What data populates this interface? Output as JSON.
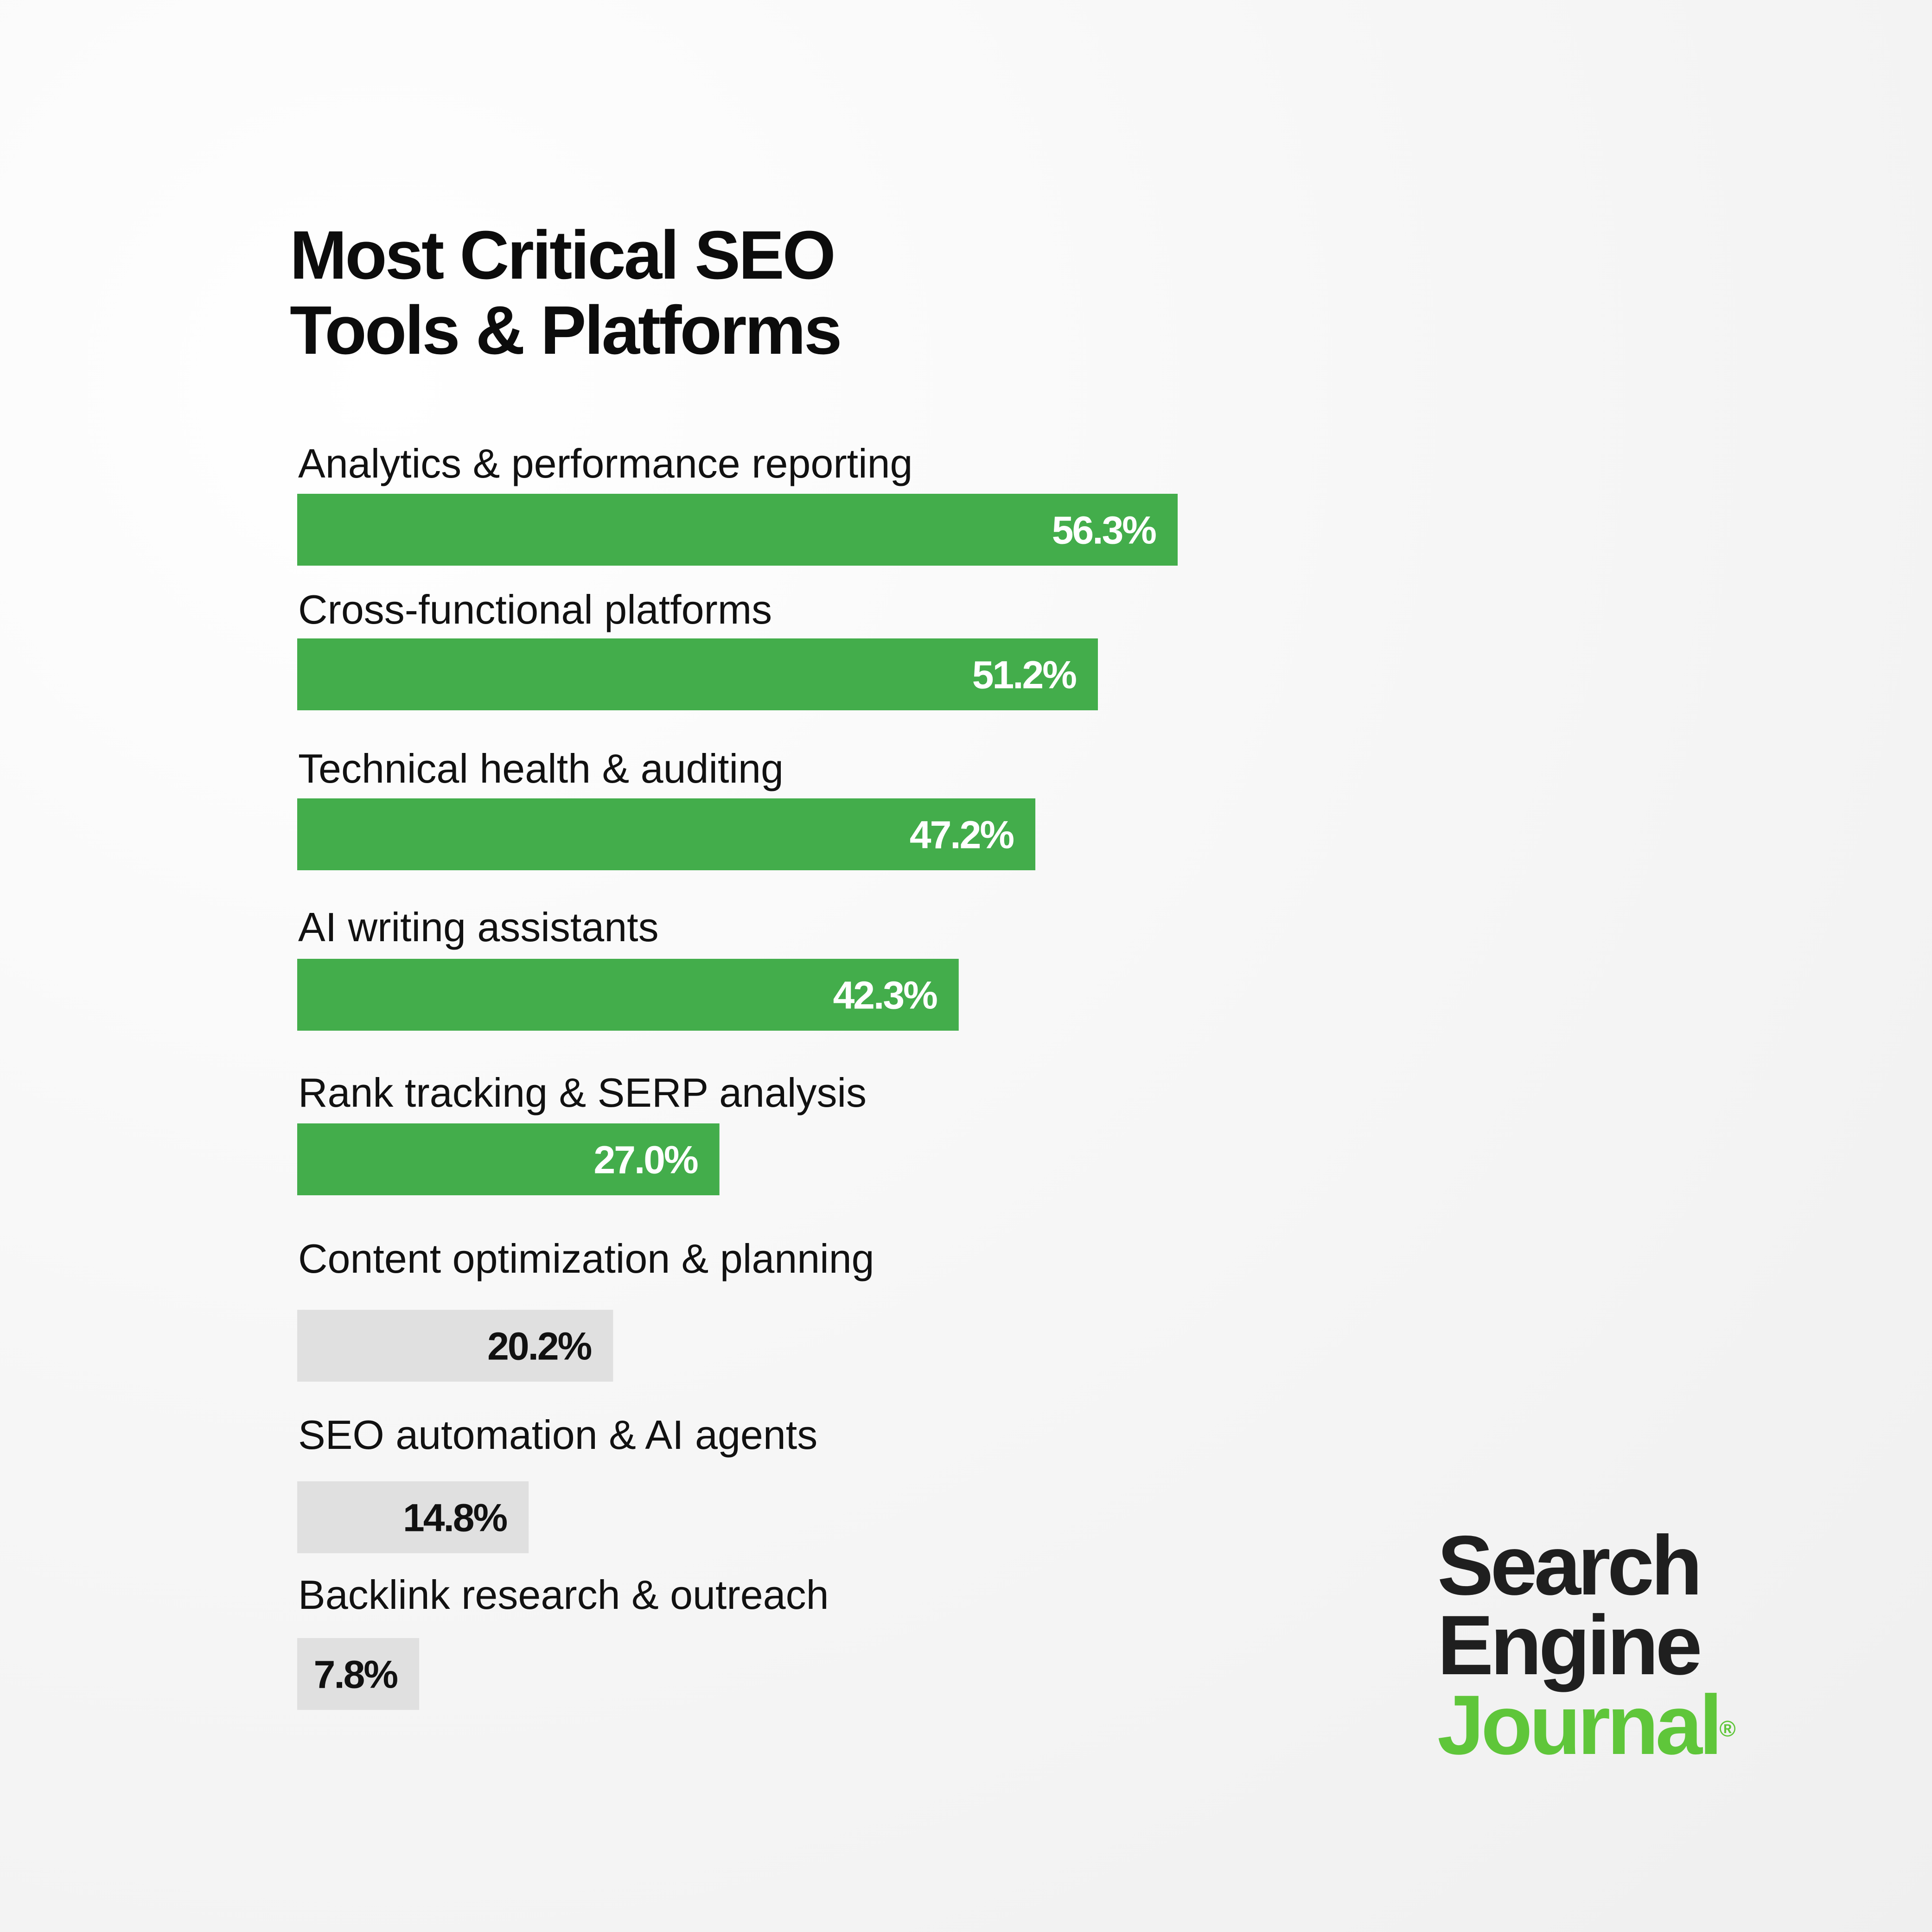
{
  "chart_data": {
    "type": "bar",
    "orientation": "horizontal",
    "title": "Most Critical SEO Tools & Platforms",
    "categories": [
      "Analytics & performance reporting",
      "Cross-functional platforms",
      "Technical health & auditing",
      "AI writing assistants",
      "Rank tracking & SERP analysis",
      "Content optimization & planning",
      "SEO automation & AI agents",
      "Backlink research & outreach"
    ],
    "values": [
      56.3,
      51.2,
      47.2,
      42.3,
      27.0,
      20.2,
      14.8,
      7.8
    ],
    "value_labels": [
      "56.3%",
      "51.2%",
      "47.2%",
      "42.3%",
      "27.0%",
      "20.2%",
      "14.8%",
      "7.8%"
    ],
    "highlighted": [
      true,
      true,
      true,
      true,
      true,
      false,
      false,
      false
    ],
    "colors": {
      "highlight": "#43ad4b",
      "muted": "#e0e0e0",
      "highlight_text": "#ffffff",
      "muted_text": "#111111"
    },
    "grid": false,
    "legend": "none"
  },
  "title": {
    "line1": "Most Critical SEO",
    "line2": "Tools & Platforms"
  },
  "logo": {
    "line1": "Search",
    "line2": "Engine",
    "line3": "Journal",
    "mark": "®",
    "colors": {
      "dark": "#1f1f1f",
      "green": "#5fc63a"
    }
  }
}
